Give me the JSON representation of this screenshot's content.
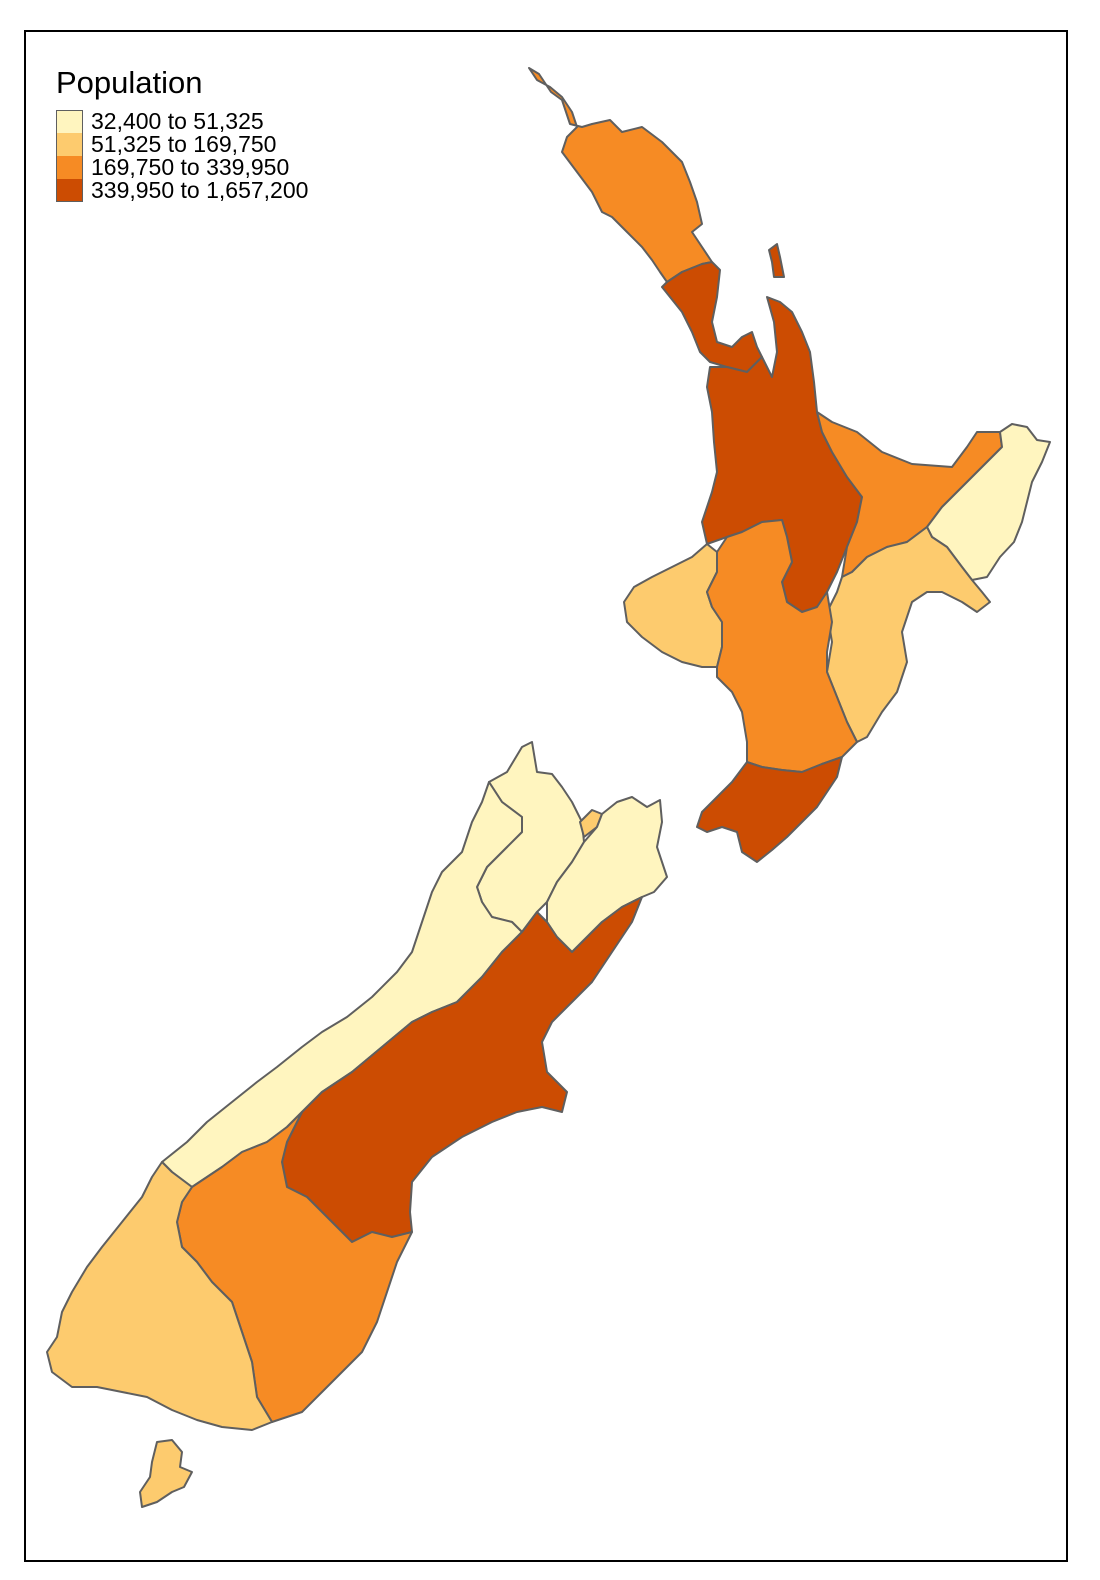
{
  "legend": {
    "title": "Population",
    "classes": [
      {
        "label": "32,400 to 51,325",
        "color": "#fff5bf"
      },
      {
        "label": "51,325 to 169,750",
        "color": "#fdcb6e"
      },
      {
        "label": "169,750 to 339,950",
        "color": "#f68b24"
      },
      {
        "label": "339,950 to 1,657,200",
        "color": "#cc4c02"
      }
    ]
  },
  "map": {
    "region_classes": {
      "northland": 2,
      "auckland": 3,
      "waikato": 3,
      "bay-of-plenty": 2,
      "gisborne": 0,
      "hawkes-bay": 1,
      "taranaki": 1,
      "manawatu-whanganui": 2,
      "wellington": 3,
      "tasman": 0,
      "nelson": 1,
      "marlborough": 0,
      "west-coast": 0,
      "canterbury": 3,
      "otago": 2,
      "southland": 1
    }
  }
}
